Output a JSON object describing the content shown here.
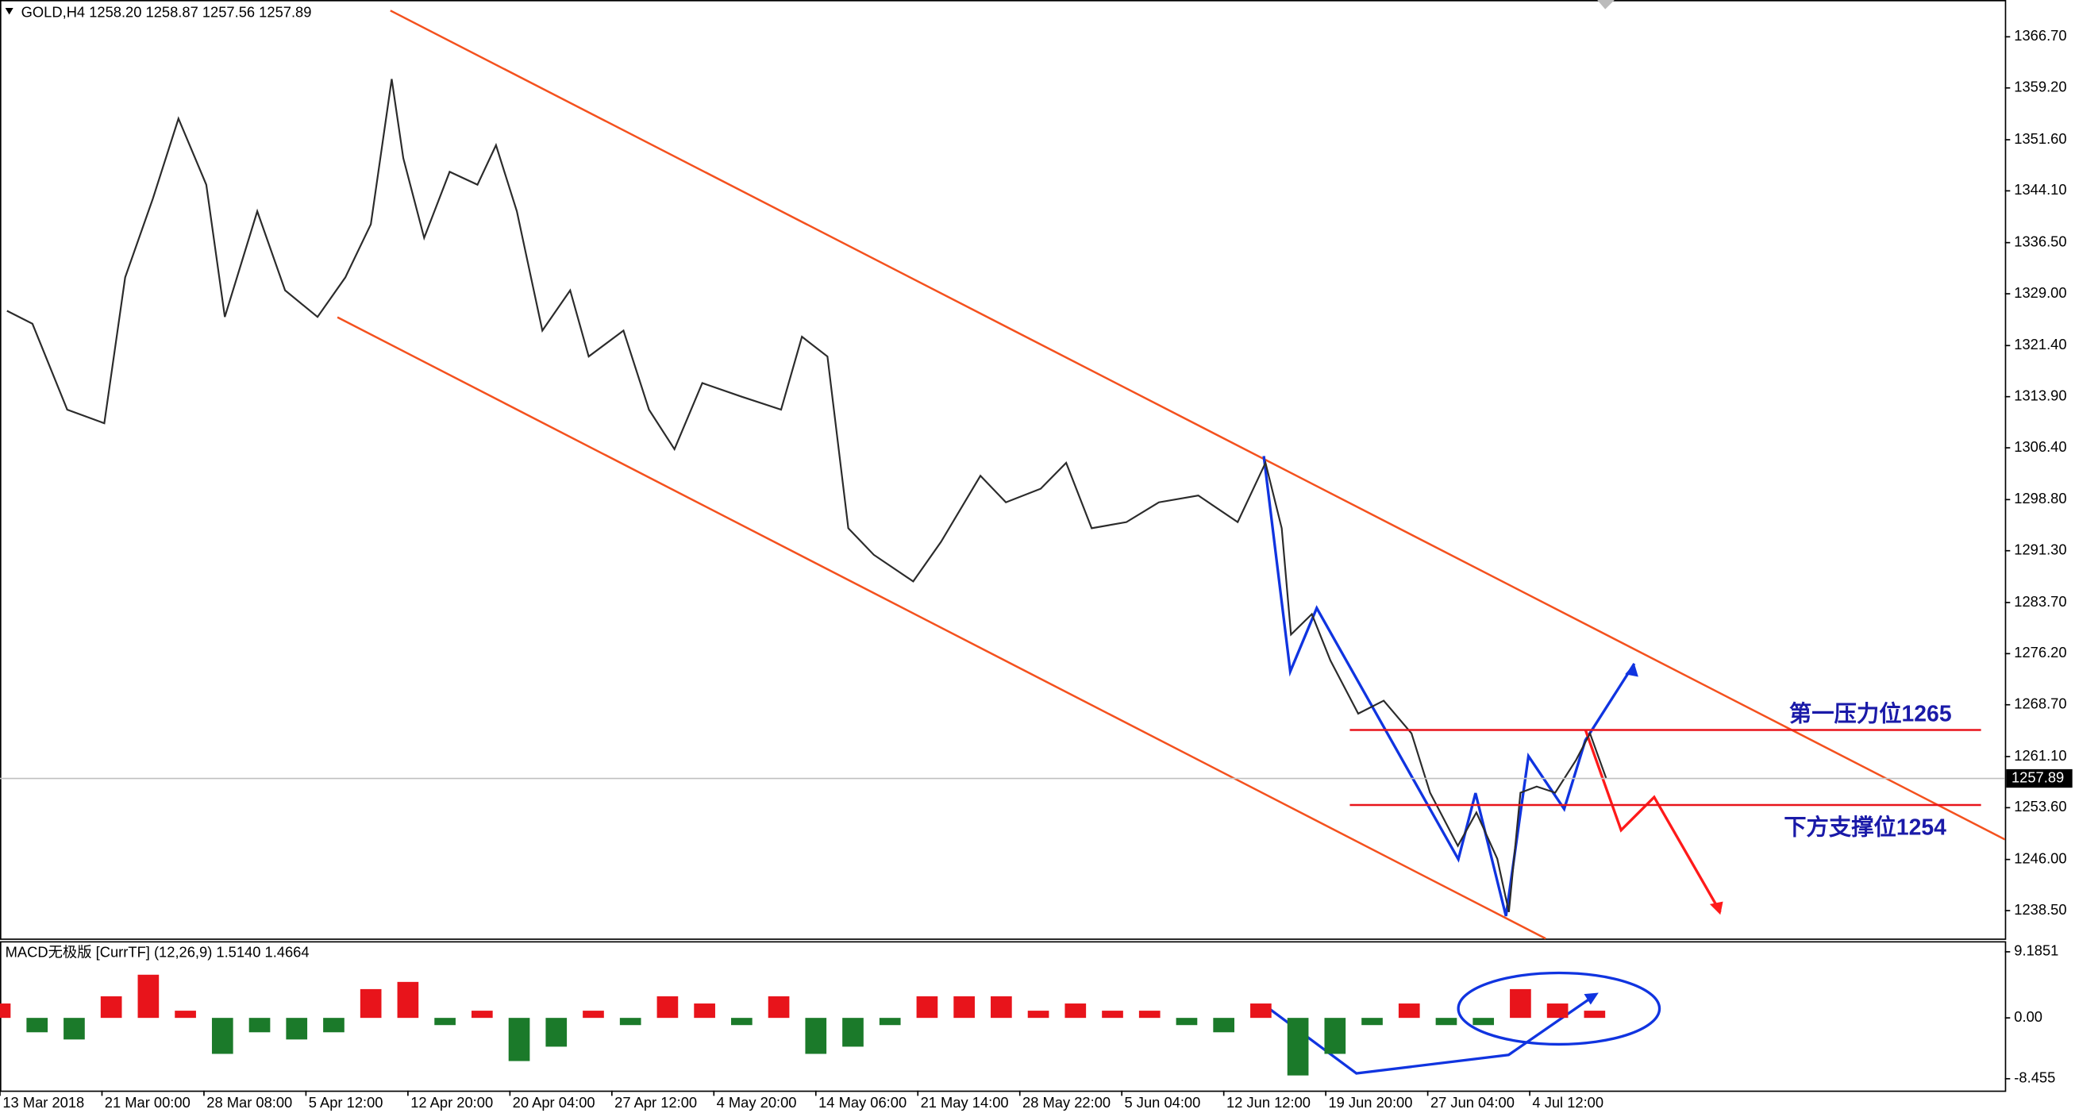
{
  "chart_data": [
    {
      "type": "line",
      "title": "GOLD,H4  1258.20 1258.87 1257.56 1257.89",
      "series": [
        {
          "name": "GOLD",
          "color": "#2b2b2b",
          "x": [
            3,
            14,
            29,
            45,
            54,
            66,
            77,
            89,
            97,
            111,
            123,
            137,
            149,
            160,
            169,
            174,
            183,
            194,
            206,
            214,
            223,
            234,
            246,
            254,
            269,
            280,
            291,
            303,
            320,
            337,
            346,
            357,
            366,
            377,
            394,
            406,
            423,
            434,
            449,
            460,
            471,
            486,
            500,
            517,
            534,
            546,
            553,
            557,
            566,
            574,
            586,
            597,
            609,
            617,
            629,
            637,
            646,
            651,
            656,
            663,
            671,
            680,
            686,
            693
          ],
          "values": [
            1326.5,
            1324.6,
            1312,
            1310,
            1331.4,
            1343,
            1354.7,
            1345,
            1325.6,
            1341.1,
            1329.5,
            1325.6,
            1331.4,
            1339.2,
            1360.5,
            1348.9,
            1337.2,
            1346.9,
            1345,
            1350.8,
            1341.1,
            1323.6,
            1329.5,
            1319.8,
            1323.6,
            1312,
            1306.2,
            1315.9,
            1313.9,
            1312,
            1322.7,
            1319.8,
            1294.6,
            1290.7,
            1286.8,
            1292.6,
            1302.3,
            1298.4,
            1300.4,
            1304.2,
            1294.6,
            1295.5,
            1298.4,
            1299.4,
            1295.5,
            1304.2,
            1294.6,
            1279,
            1282,
            1275.2,
            1267.4,
            1269.3,
            1264.5,
            1255.8,
            1248,
            1252.9,
            1246.1,
            1238.3,
            1255.8,
            1256.7,
            1255.8,
            1260.6,
            1264.5,
            1257.89
          ]
        }
      ],
      "xlim": [
        0,
        865
      ],
      "xticks": [
        {
          "value": 0,
          "label": "13 Mar 2018"
        },
        {
          "value": 44,
          "label": "21 Mar 00:00"
        },
        {
          "value": 88,
          "label": "28 Mar 08:00"
        },
        {
          "value": 132,
          "label": "5 Apr 12:00"
        },
        {
          "value": 176,
          "label": "12 Apr 20:00"
        },
        {
          "value": 220,
          "label": "20 Apr 04:00"
        },
        {
          "value": 264,
          "label": "27 Apr 12:00"
        },
        {
          "value": 308,
          "label": "4 May 20:00"
        },
        {
          "value": 352,
          "label": "14 May 06:00"
        },
        {
          "value": 396,
          "label": "21 May 14:00"
        },
        {
          "value": 440,
          "label": "28 May 22:00"
        },
        {
          "value": 484,
          "label": "5 Jun 04:00"
        },
        {
          "value": 528,
          "label": "12 Jun 12:00"
        },
        {
          "value": 572,
          "label": "19 Jun 20:00"
        },
        {
          "value": 616,
          "label": "27 Jun 04:00"
        },
        {
          "value": 660,
          "label": "4 Jul 12:00"
        }
      ],
      "ylim": [
        1234.4,
        1372.1
      ],
      "yticks": [
        {
          "value": 1366.7,
          "label": "1366.70"
        },
        {
          "value": 1359.2,
          "label": "1359.20"
        },
        {
          "value": 1351.6,
          "label": "1351.60"
        },
        {
          "value": 1344.1,
          "label": "1344.10"
        },
        {
          "value": 1336.5,
          "label": "1336.50"
        },
        {
          "value": 1329,
          "label": "1329.00"
        },
        {
          "value": 1321.4,
          "label": "1321.40"
        },
        {
          "value": 1313.9,
          "label": "1313.90"
        },
        {
          "value": 1306.4,
          "label": "1306.40"
        },
        {
          "value": 1298.8,
          "label": "1298.80"
        },
        {
          "value": 1291.3,
          "label": "1291.30"
        },
        {
          "value": 1283.7,
          "label": "1283.70"
        },
        {
          "value": 1276.2,
          "label": "1276.20"
        },
        {
          "value": 1268.7,
          "label": "1268.70"
        },
        {
          "value": 1261.1,
          "label": "1261.10"
        },
        {
          "value": 1253.6,
          "label": "1253.60"
        },
        {
          "value": 1246,
          "label": "1246.00"
        },
        {
          "value": 1238.5,
          "label": "1238.50"
        }
      ],
      "last_price": 1257.89,
      "levels": [
        {
          "value": 1265,
          "label": "第一压力位1265",
          "color": "#e8141b"
        },
        {
          "value": 1254,
          "label": "下方支撑位1254",
          "color": "#e8141b"
        }
      ],
      "grid": false
    },
    {
      "type": "bar",
      "title": "MACD无极版 [CurrTF] (12,26,9) 1.5140 1.4664",
      "x": [
        0,
        16,
        32,
        48,
        64,
        80,
        96,
        112,
        128,
        144,
        160,
        176,
        192,
        208,
        224,
        240,
        256,
        272,
        288,
        304,
        320,
        336,
        352,
        368,
        384,
        400,
        416,
        432,
        448,
        464,
        480,
        496,
        512,
        528,
        544,
        560,
        576,
        592,
        608,
        624,
        640,
        656,
        672,
        688
      ],
      "values": [
        2,
        -2,
        -3,
        3,
        6,
        1,
        -5,
        -2,
        -3,
        -2,
        4,
        5,
        -1,
        1,
        -6,
        -4,
        1,
        -1,
        3,
        2,
        -1,
        3,
        -5,
        -4,
        -1,
        3,
        3,
        3,
        1,
        2,
        1,
        1,
        -1,
        -2,
        2,
        -8,
        -5,
        -1,
        2,
        -1,
        -1,
        4,
        2,
        1
      ],
      "pos_color": "#e8141b",
      "neg_color": "#1b7a2a",
      "xlim": [
        0,
        865
      ],
      "ylim": [
        -10.1,
        10.66
      ],
      "yticks": [
        9.1851,
        {
          "value": 0,
          "label": "0.00"
        },
        -8.455
      ],
      "grid": false
    }
  ]
}
